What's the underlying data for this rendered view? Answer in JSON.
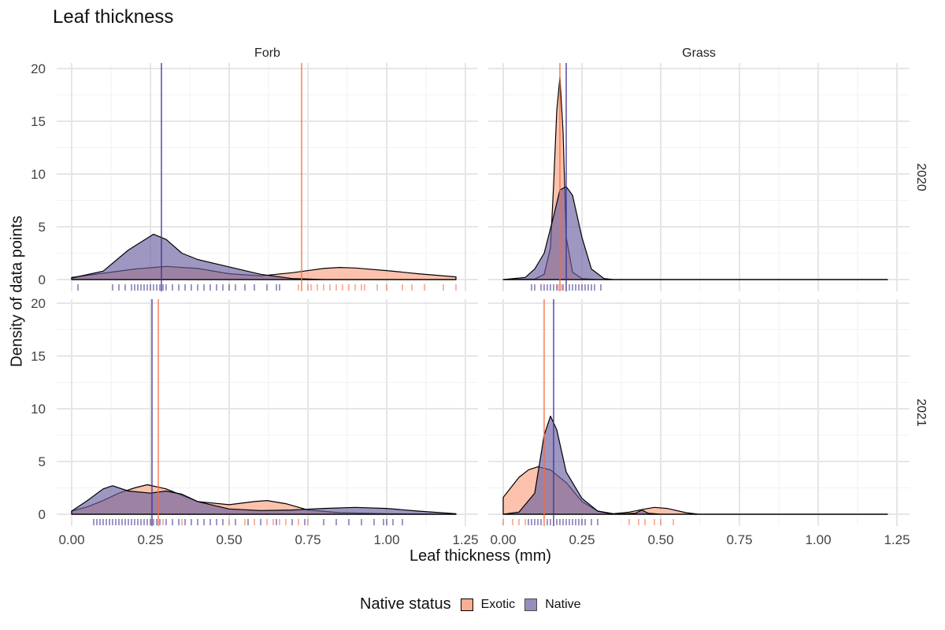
{
  "title": "Leaf thickness",
  "colors": {
    "exotic_fill": "#fcae91",
    "native_fill": "#6a5fa0",
    "exotic_line": "#f46d43",
    "native_line": "#3f2f8f",
    "grid_major": "#e6e6e6",
    "grid_minor": "#f2f2f2"
  },
  "legend": {
    "title": "Native status",
    "items": [
      {
        "label": "Exotic",
        "color": "#fcae91"
      },
      {
        "label": "Native",
        "color": "#6a5fa0"
      }
    ]
  },
  "chart_data": {
    "type": "area",
    "xlabel": "Leaf thickness (mm)",
    "ylabel": "Density of data points",
    "xlim": [
      0.0,
      1.25
    ],
    "ylim": [
      0,
      20
    ],
    "x_ticks": [
      "0.00",
      "0.25",
      "0.50",
      "0.75",
      "1.00",
      "1.25"
    ],
    "y_ticks": [
      "0",
      "5",
      "10",
      "15",
      "20"
    ],
    "facet_cols": [
      "Forb",
      "Grass"
    ],
    "facet_rows": [
      "2020",
      "2021"
    ],
    "series_names": [
      "Exotic",
      "Native"
    ],
    "panels": [
      {
        "col": "Forb",
        "row": "2020",
        "means": {
          "Exotic": 0.73,
          "Native": 0.285
        },
        "series": [
          {
            "name": "Exotic",
            "points": [
              [
                0.0,
                0.2
              ],
              [
                0.1,
                0.6
              ],
              [
                0.2,
                1.0
              ],
              [
                0.3,
                1.25
              ],
              [
                0.4,
                1.05
              ],
              [
                0.5,
                0.55
              ],
              [
                0.6,
                0.35
              ],
              [
                0.7,
                0.65
              ],
              [
                0.8,
                1.05
              ],
              [
                0.85,
                1.15
              ],
              [
                0.9,
                1.1
              ],
              [
                1.0,
                0.85
              ],
              [
                1.1,
                0.55
              ],
              [
                1.22,
                0.25
              ]
            ]
          },
          {
            "name": "Native",
            "points": [
              [
                0.0,
                0.15
              ],
              [
                0.1,
                0.8
              ],
              [
                0.18,
                2.8
              ],
              [
                0.26,
                4.3
              ],
              [
                0.3,
                3.8
              ],
              [
                0.35,
                2.5
              ],
              [
                0.4,
                1.9
              ],
              [
                0.5,
                1.2
              ],
              [
                0.6,
                0.5
              ],
              [
                0.7,
                0.1
              ],
              [
                0.8,
                0.0
              ],
              [
                1.22,
                0.0
              ]
            ]
          }
        ],
        "rug": {
          "Exotic": [
            0.72,
            0.73,
            0.75,
            0.76,
            0.78,
            0.8,
            0.82,
            0.84,
            0.86,
            0.88,
            0.9,
            0.92,
            0.93,
            0.97,
            1.0,
            1.05,
            1.08,
            1.12,
            1.18,
            1.22
          ],
          "Native": [
            0.02,
            0.13,
            0.15,
            0.17,
            0.19,
            0.2,
            0.21,
            0.22,
            0.23,
            0.24,
            0.25,
            0.26,
            0.27,
            0.28,
            0.29,
            0.3,
            0.32,
            0.34,
            0.36,
            0.38,
            0.4,
            0.42,
            0.44,
            0.46,
            0.48,
            0.5,
            0.52,
            0.55,
            0.58,
            0.62,
            0.65,
            0.66
          ]
        }
      },
      {
        "col": "Grass",
        "row": "2020",
        "means": {
          "Exotic": 0.18,
          "Native": 0.2
        },
        "series": [
          {
            "name": "Exotic",
            "points": [
              [
                0.0,
                0.0
              ],
              [
                0.1,
                0.05
              ],
              [
                0.13,
                0.5
              ],
              [
                0.15,
                3.0
              ],
              [
                0.16,
                9.0
              ],
              [
                0.17,
                16.0
              ],
              [
                0.18,
                19.2
              ],
              [
                0.19,
                14.0
              ],
              [
                0.2,
                4.0
              ],
              [
                0.22,
                0.7
              ],
              [
                0.25,
                0.1
              ],
              [
                0.3,
                0.0
              ],
              [
                1.22,
                0.0
              ]
            ]
          },
          {
            "name": "Native",
            "points": [
              [
                0.0,
                0.0
              ],
              [
                0.07,
                0.2
              ],
              [
                0.1,
                1.0
              ],
              [
                0.13,
                2.5
              ],
              [
                0.16,
                6.0
              ],
              [
                0.18,
                8.5
              ],
              [
                0.2,
                8.8
              ],
              [
                0.22,
                8.0
              ],
              [
                0.25,
                4.0
              ],
              [
                0.28,
                1.0
              ],
              [
                0.32,
                0.1
              ],
              [
                0.35,
                0.0
              ],
              [
                1.22,
                0.0
              ]
            ]
          }
        ],
        "rug": {
          "Exotic": [
            0.15,
            0.16,
            0.17,
            0.175,
            0.18,
            0.185,
            0.19,
            0.2
          ],
          "Native": [
            0.09,
            0.1,
            0.12,
            0.13,
            0.14,
            0.15,
            0.16,
            0.17,
            0.18,
            0.19,
            0.2,
            0.21,
            0.22,
            0.23,
            0.24,
            0.25,
            0.26,
            0.27,
            0.28,
            0.29,
            0.31
          ]
        }
      },
      {
        "col": "Forb",
        "row": "2021",
        "means": {
          "Exotic": 0.275,
          "Native": 0.255
        },
        "series": [
          {
            "name": "Exotic",
            "points": [
              [
                0.0,
                0.3
              ],
              [
                0.05,
                0.7
              ],
              [
                0.1,
                1.3
              ],
              [
                0.15,
                2.0
              ],
              [
                0.2,
                2.5
              ],
              [
                0.24,
                2.8
              ],
              [
                0.3,
                2.4
              ],
              [
                0.35,
                1.8
              ],
              [
                0.4,
                1.2
              ],
              [
                0.5,
                0.9
              ],
              [
                0.58,
                1.2
              ],
              [
                0.62,
                1.3
              ],
              [
                0.68,
                1.0
              ],
              [
                0.75,
                0.4
              ],
              [
                0.85,
                0.15
              ],
              [
                1.0,
                0.05
              ],
              [
                1.22,
                0.0
              ]
            ]
          },
          {
            "name": "Native",
            "points": [
              [
                0.0,
                0.3
              ],
              [
                0.05,
                1.3
              ],
              [
                0.1,
                2.4
              ],
              [
                0.13,
                2.7
              ],
              [
                0.18,
                2.2
              ],
              [
                0.25,
                2.0
              ],
              [
                0.3,
                2.2
              ],
              [
                0.35,
                1.9
              ],
              [
                0.4,
                1.2
              ],
              [
                0.5,
                0.5
              ],
              [
                0.6,
                0.35
              ],
              [
                0.7,
                0.4
              ],
              [
                0.8,
                0.55
              ],
              [
                0.9,
                0.65
              ],
              [
                1.0,
                0.55
              ],
              [
                1.1,
                0.3
              ],
              [
                1.22,
                0.05
              ]
            ]
          }
        ],
        "rug": {
          "Exotic": [
            0.17,
            0.2,
            0.22,
            0.25,
            0.27,
            0.29,
            0.32,
            0.35,
            0.4,
            0.42,
            0.44,
            0.5,
            0.55,
            0.56,
            0.58,
            0.6,
            0.62,
            0.64,
            0.66,
            0.68,
            0.7,
            0.72,
            0.75
          ],
          "Native": [
            0.07,
            0.08,
            0.09,
            0.1,
            0.11,
            0.12,
            0.13,
            0.14,
            0.15,
            0.16,
            0.17,
            0.18,
            0.19,
            0.2,
            0.21,
            0.22,
            0.23,
            0.24,
            0.25,
            0.26,
            0.27,
            0.28,
            0.3,
            0.32,
            0.34,
            0.36,
            0.38,
            0.4,
            0.42,
            0.44,
            0.46,
            0.48,
            0.52,
            0.56,
            0.6,
            0.65,
            0.7,
            0.74,
            0.8,
            0.84,
            0.88,
            0.92,
            0.96,
            0.99,
            1.0,
            1.02,
            1.05
          ]
        }
      },
      {
        "col": "Grass",
        "row": "2021",
        "means": {
          "Exotic": 0.13,
          "Native": 0.16
        },
        "series": [
          {
            "name": "Exotic",
            "points": [
              [
                0.0,
                1.6
              ],
              [
                0.05,
                3.5
              ],
              [
                0.08,
                4.2
              ],
              [
                0.11,
                4.5
              ],
              [
                0.15,
                4.2
              ],
              [
                0.2,
                3.0
              ],
              [
                0.25,
                1.2
              ],
              [
                0.3,
                0.3
              ],
              [
                0.35,
                0.05
              ],
              [
                0.4,
                0.2
              ],
              [
                0.45,
                0.5
              ],
              [
                0.48,
                0.65
              ],
              [
                0.52,
                0.55
              ],
              [
                0.58,
                0.15
              ],
              [
                0.62,
                0.0
              ],
              [
                1.22,
                0.0
              ]
            ]
          },
          {
            "name": "Native",
            "points": [
              [
                0.0,
                0.0
              ],
              [
                0.05,
                0.2
              ],
              [
                0.1,
                2.0
              ],
              [
                0.13,
                7.5
              ],
              [
                0.15,
                9.3
              ],
              [
                0.17,
                8.0
              ],
              [
                0.2,
                4.0
              ],
              [
                0.25,
                1.5
              ],
              [
                0.3,
                0.3
              ],
              [
                0.35,
                0.0
              ],
              [
                0.42,
                0.1
              ],
              [
                0.44,
                0.4
              ],
              [
                0.46,
                0.1
              ],
              [
                0.5,
                0.0
              ],
              [
                1.22,
                0.0
              ]
            ]
          }
        ],
        "rug": {
          "Exotic": [
            0.0,
            0.03,
            0.05,
            0.07,
            0.08,
            0.09,
            0.1,
            0.11,
            0.12,
            0.13,
            0.14,
            0.15,
            0.16,
            0.4,
            0.43,
            0.45,
            0.48,
            0.5,
            0.54
          ],
          "Native": [
            0.08,
            0.09,
            0.1,
            0.11,
            0.12,
            0.13,
            0.14,
            0.15,
            0.16,
            0.17,
            0.18,
            0.19,
            0.2,
            0.21,
            0.22,
            0.23,
            0.24,
            0.25,
            0.26,
            0.28,
            0.3
          ]
        }
      }
    ]
  }
}
